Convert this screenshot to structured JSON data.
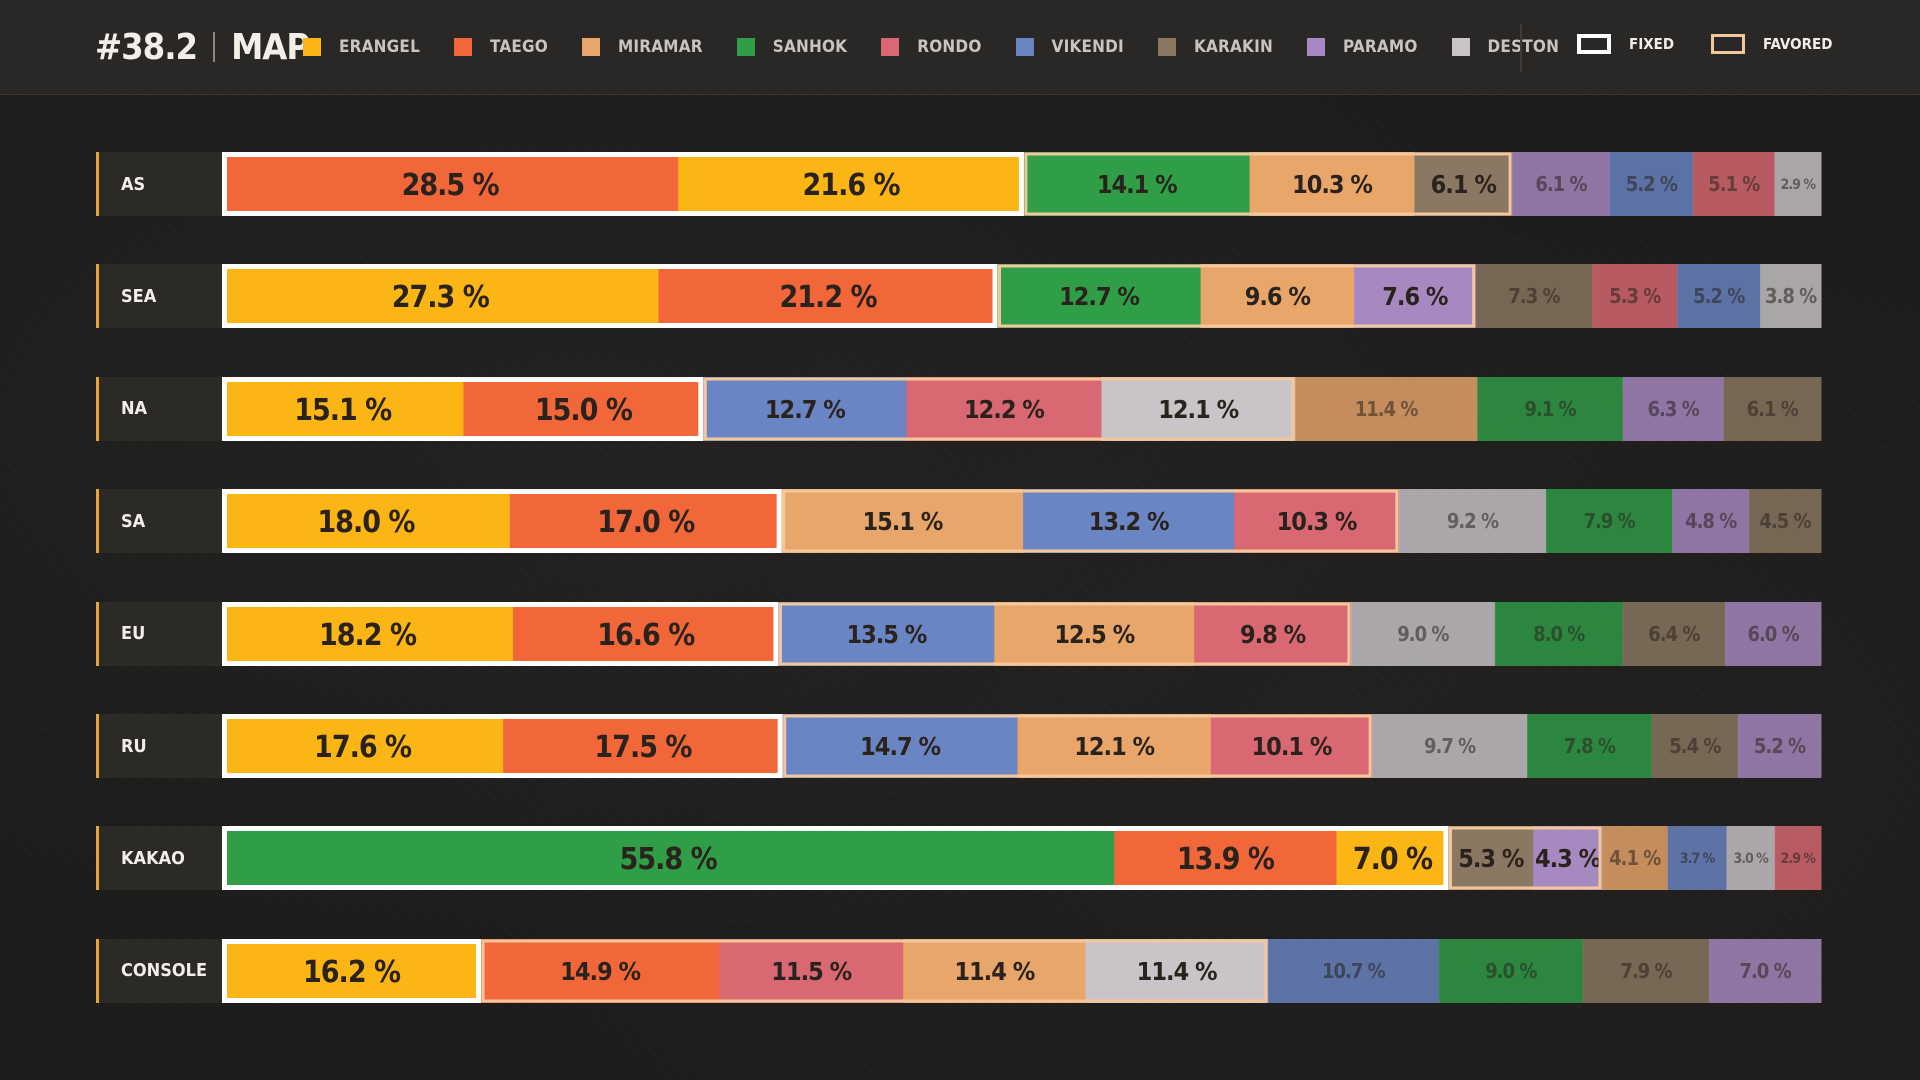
{
  "header": {
    "title_number": "#38.2",
    "title_word": "MAP"
  },
  "legend": [
    {
      "name": "ERANGEL",
      "color": "#fbb514"
    },
    {
      "name": "TAEGO",
      "color": "#f2673a"
    },
    {
      "name": "MIRAMAR",
      "color": "#e9a66a"
    },
    {
      "name": "SANHOK",
      "color": "#2f9e47"
    },
    {
      "name": "RONDO",
      "color": "#d96872"
    },
    {
      "name": "VIKENDI",
      "color": "#6a85c3"
    },
    {
      "name": "KARAKIN",
      "color": "#8a7862"
    },
    {
      "name": "PARAMO",
      "color": "#a789c1"
    },
    {
      "name": "DESTON",
      "color": "#c8c4c8"
    }
  ],
  "keys": {
    "fixed_label": "FIXED",
    "favored_label": "FAVORED",
    "fixed_color": "#ffffff",
    "favored_color": "#f2c79c"
  },
  "chart_data": {
    "type": "bar",
    "orientation": "horizontal-stacked",
    "unit": "%",
    "rows": [
      {
        "region": "AS",
        "fixed": 2,
        "favored": 3,
        "segments": [
          {
            "map": "TAEGO",
            "value": 28.5,
            "label": "28.5 %"
          },
          {
            "map": "ERANGEL",
            "value": 21.6,
            "label": "21.6 %"
          },
          {
            "map": "SANHOK",
            "value": 14.1,
            "label": "14.1 %"
          },
          {
            "map": "MIRAMAR",
            "value": 10.3,
            "label": "10.3 %"
          },
          {
            "map": "KARAKIN",
            "value": 6.1,
            "label": "6.1 %"
          },
          {
            "map": "PARAMO",
            "value": 6.1,
            "label": "6.1 %"
          },
          {
            "map": "VIKENDI",
            "value": 5.2,
            "label": "5.2 %"
          },
          {
            "map": "RONDO",
            "value": 5.1,
            "label": "5.1 %"
          },
          {
            "map": "DESTON",
            "value": 2.9,
            "label": "2.9 %"
          }
        ]
      },
      {
        "region": "SEA",
        "fixed": 2,
        "favored": 3,
        "segments": [
          {
            "map": "ERANGEL",
            "value": 27.3,
            "label": "27.3 %"
          },
          {
            "map": "TAEGO",
            "value": 21.2,
            "label": "21.2 %"
          },
          {
            "map": "SANHOK",
            "value": 12.7,
            "label": "12.7 %"
          },
          {
            "map": "MIRAMAR",
            "value": 9.6,
            "label": "9.6 %"
          },
          {
            "map": "PARAMO",
            "value": 7.6,
            "label": "7.6 %"
          },
          {
            "map": "KARAKIN",
            "value": 7.3,
            "label": "7.3 %"
          },
          {
            "map": "RONDO",
            "value": 5.3,
            "label": "5.3 %"
          },
          {
            "map": "VIKENDI",
            "value": 5.2,
            "label": "5.2 %"
          },
          {
            "map": "DESTON",
            "value": 3.8,
            "label": "3.8 %"
          }
        ]
      },
      {
        "region": "NA",
        "fixed": 2,
        "favored": 3,
        "segments": [
          {
            "map": "ERANGEL",
            "value": 15.1,
            "label": "15.1 %"
          },
          {
            "map": "TAEGO",
            "value": 15.0,
            "label": "15.0 %"
          },
          {
            "map": "VIKENDI",
            "value": 12.7,
            "label": "12.7 %"
          },
          {
            "map": "RONDO",
            "value": 12.2,
            "label": "12.2 %"
          },
          {
            "map": "DESTON",
            "value": 12.1,
            "label": "12.1 %"
          },
          {
            "map": "MIRAMAR",
            "value": 11.4,
            "label": "11.4 %"
          },
          {
            "map": "SANHOK",
            "value": 9.1,
            "label": "9.1 %"
          },
          {
            "map": "PARAMO",
            "value": 6.3,
            "label": "6.3 %"
          },
          {
            "map": "KARAKIN",
            "value": 6.1,
            "label": "6.1 %"
          }
        ]
      },
      {
        "region": "SA",
        "fixed": 2,
        "favored": 3,
        "segments": [
          {
            "map": "ERANGEL",
            "value": 18.0,
            "label": "18.0 %"
          },
          {
            "map": "TAEGO",
            "value": 17.0,
            "label": "17.0 %"
          },
          {
            "map": "MIRAMAR",
            "value": 15.1,
            "label": "15.1 %"
          },
          {
            "map": "VIKENDI",
            "value": 13.2,
            "label": "13.2 %"
          },
          {
            "map": "RONDO",
            "value": 10.3,
            "label": "10.3 %"
          },
          {
            "map": "DESTON",
            "value": 9.2,
            "label": "9.2 %"
          },
          {
            "map": "SANHOK",
            "value": 7.9,
            "label": "7.9 %"
          },
          {
            "map": "PARAMO",
            "value": 4.8,
            "label": "4.8 %"
          },
          {
            "map": "KARAKIN",
            "value": 4.5,
            "label": "4.5 %"
          }
        ]
      },
      {
        "region": "EU",
        "fixed": 2,
        "favored": 3,
        "segments": [
          {
            "map": "ERANGEL",
            "value": 18.2,
            "label": "18.2 %"
          },
          {
            "map": "TAEGO",
            "value": 16.6,
            "label": "16.6 %"
          },
          {
            "map": "VIKENDI",
            "value": 13.5,
            "label": "13.5 %"
          },
          {
            "map": "MIRAMAR",
            "value": 12.5,
            "label": "12.5 %"
          },
          {
            "map": "RONDO",
            "value": 9.8,
            "label": "9.8 %"
          },
          {
            "map": "DESTON",
            "value": 9.0,
            "label": "9.0 %"
          },
          {
            "map": "SANHOK",
            "value": 8.0,
            "label": "8.0 %"
          },
          {
            "map": "KARAKIN",
            "value": 6.4,
            "label": "6.4 %"
          },
          {
            "map": "PARAMO",
            "value": 6.0,
            "label": "6.0 %"
          }
        ]
      },
      {
        "region": "RU",
        "fixed": 2,
        "favored": 3,
        "segments": [
          {
            "map": "ERANGEL",
            "value": 17.6,
            "label": "17.6 %"
          },
          {
            "map": "TAEGO",
            "value": 17.5,
            "label": "17.5 %"
          },
          {
            "map": "VIKENDI",
            "value": 14.7,
            "label": "14.7 %"
          },
          {
            "map": "MIRAMAR",
            "value": 12.1,
            "label": "12.1 %"
          },
          {
            "map": "RONDO",
            "value": 10.1,
            "label": "10.1 %"
          },
          {
            "map": "DESTON",
            "value": 9.7,
            "label": "9.7 %"
          },
          {
            "map": "SANHOK",
            "value": 7.8,
            "label": "7.8 %"
          },
          {
            "map": "KARAKIN",
            "value": 5.4,
            "label": "5.4 %"
          },
          {
            "map": "PARAMO",
            "value": 5.2,
            "label": "5.2 %"
          }
        ]
      },
      {
        "region": "KAKAO",
        "fixed": 3,
        "favored": 2,
        "segments": [
          {
            "map": "SANHOK",
            "value": 55.8,
            "label": "55.8 %"
          },
          {
            "map": "TAEGO",
            "value": 13.9,
            "label": "13.9 %"
          },
          {
            "map": "ERANGEL",
            "value": 7.0,
            "label": "7.0 %"
          },
          {
            "map": "KARAKIN",
            "value": 5.3,
            "label": "5.3 %"
          },
          {
            "map": "PARAMO",
            "value": 4.3,
            "label": "4.3 %"
          },
          {
            "map": "MIRAMAR",
            "value": 4.1,
            "label": "4.1 %"
          },
          {
            "map": "VIKENDI",
            "value": 3.7,
            "label": "3.7 %"
          },
          {
            "map": "DESTON",
            "value": 3.0,
            "label": "3.0 %"
          },
          {
            "map": "RONDO",
            "value": 2.9,
            "label": "2.9 %"
          }
        ]
      },
      {
        "region": "CONSOLE",
        "fixed": 1,
        "favored": 4,
        "segments": [
          {
            "map": "ERANGEL",
            "value": 16.2,
            "label": "16.2 %"
          },
          {
            "map": "TAEGO",
            "value": 14.9,
            "label": "14.9 %"
          },
          {
            "map": "RONDO",
            "value": 11.5,
            "label": "11.5 %"
          },
          {
            "map": "MIRAMAR",
            "value": 11.4,
            "label": "11.4 %"
          },
          {
            "map": "DESTON",
            "value": 11.4,
            "label": "11.4 %"
          },
          {
            "map": "VIKENDI",
            "value": 10.7,
            "label": "10.7 %"
          },
          {
            "map": "SANHOK",
            "value": 9.0,
            "label": "9.0 %"
          },
          {
            "map": "KARAKIN",
            "value": 7.9,
            "label": "7.9 %"
          },
          {
            "map": "PARAMO",
            "value": 7.0,
            "label": "7.0 %"
          }
        ]
      }
    ]
  }
}
